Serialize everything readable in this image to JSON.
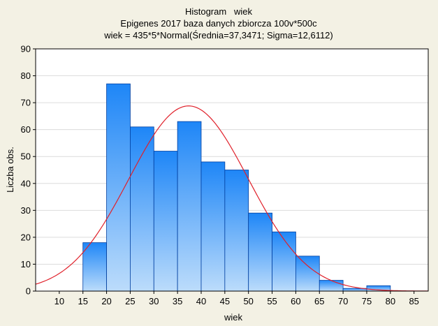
{
  "chart_data": {
    "type": "bar",
    "title": "Histogram   wiek",
    "subtitle": "Epigenes 2017 baza danych zbiorcza 100v*500c",
    "fit_label": "wiek = 435*5*Normal(Średnia=37,3471; Sigma=12,6112)",
    "xlabel": "wiek",
    "ylabel": "Liczba obs.",
    "xlim": [
      5,
      88
    ],
    "ylim": [
      0,
      90
    ],
    "x_ticks": [
      10,
      15,
      20,
      25,
      30,
      35,
      40,
      45,
      50,
      55,
      60,
      65,
      70,
      75,
      80,
      85
    ],
    "y_ticks": [
      0,
      10,
      20,
      30,
      40,
      50,
      60,
      70,
      80,
      90
    ],
    "bins": [
      {
        "from": 10,
        "to": 15,
        "value": 0
      },
      {
        "from": 15,
        "to": 20,
        "value": 18
      },
      {
        "from": 20,
        "to": 25,
        "value": 77
      },
      {
        "from": 25,
        "to": 30,
        "value": 61
      },
      {
        "from": 30,
        "to": 35,
        "value": 52
      },
      {
        "from": 35,
        "to": 40,
        "value": 63
      },
      {
        "from": 40,
        "to": 45,
        "value": 48
      },
      {
        "from": 45,
        "to": 50,
        "value": 45
      },
      {
        "from": 50,
        "to": 55,
        "value": 29
      },
      {
        "from": 55,
        "to": 60,
        "value": 22
      },
      {
        "from": 60,
        "to": 65,
        "value": 13
      },
      {
        "from": 65,
        "to": 70,
        "value": 4
      },
      {
        "from": 70,
        "to": 75,
        "value": 1
      },
      {
        "from": 75,
        "to": 80,
        "value": 2
      },
      {
        "from": 80,
        "to": 85,
        "value": 0
      }
    ],
    "normal_fit": {
      "n": 435,
      "bin_width": 5,
      "mean": 37.3471,
      "sigma": 12.6112
    },
    "grid": true,
    "colors": {
      "background": "#f3f1e4",
      "plot_background": "#ffffff",
      "bar_top": "#1e86f7",
      "bar_bottom": "#bcdcfb",
      "bar_stroke": "#003fa0",
      "fit_line": "#e0202a",
      "grid": "#dcdcdc"
    }
  }
}
